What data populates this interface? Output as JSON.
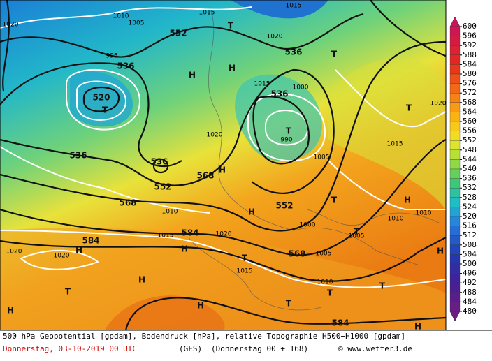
{
  "map": {
    "labels": [
      "536",
      "520",
      "T",
      "552",
      "536",
      "536",
      "T",
      "536",
      "536",
      "552",
      "568",
      "568",
      "584",
      "584",
      "552",
      "568",
      "584",
      "H",
      "H",
      "H",
      "H",
      "H",
      "H",
      "H",
      "H",
      "H",
      "H",
      "H",
      "H",
      "T",
      "T",
      "T",
      "T",
      "T",
      "T",
      "T",
      "T",
      "T",
      "T",
      "1020",
      "1010",
      "1005",
      "1020",
      "1015",
      "1020",
      "995",
      "1000",
      "990",
      "1005",
      "1015",
      "1020",
      "1010",
      "1015",
      "1020",
      "1020",
      "1020",
      "1015",
      "1010",
      "1005",
      "1000",
      "1010",
      "1010",
      "1005",
      "1015",
      "1015"
    ],
    "colorbar": {
      "ticks": [
        600,
        596,
        592,
        588,
        584,
        580,
        576,
        572,
        568,
        564,
        560,
        556,
        552,
        548,
        544,
        540,
        536,
        532,
        528,
        524,
        520,
        516,
        512,
        508,
        504,
        500,
        496,
        492,
        488,
        484,
        480
      ]
    }
  },
  "footer": {
    "line1": "500 hPa Geopotential [gpdam], Bodendruck [hPa], relative Topographie H500−H1000 [gpdam]",
    "date": "Donnerstag, 03-10-2019  00 UTC",
    "model": "(GFS)",
    "run": "(Donnerstag 00 + 168)",
    "credit": "© www.wetter3.de"
  }
}
